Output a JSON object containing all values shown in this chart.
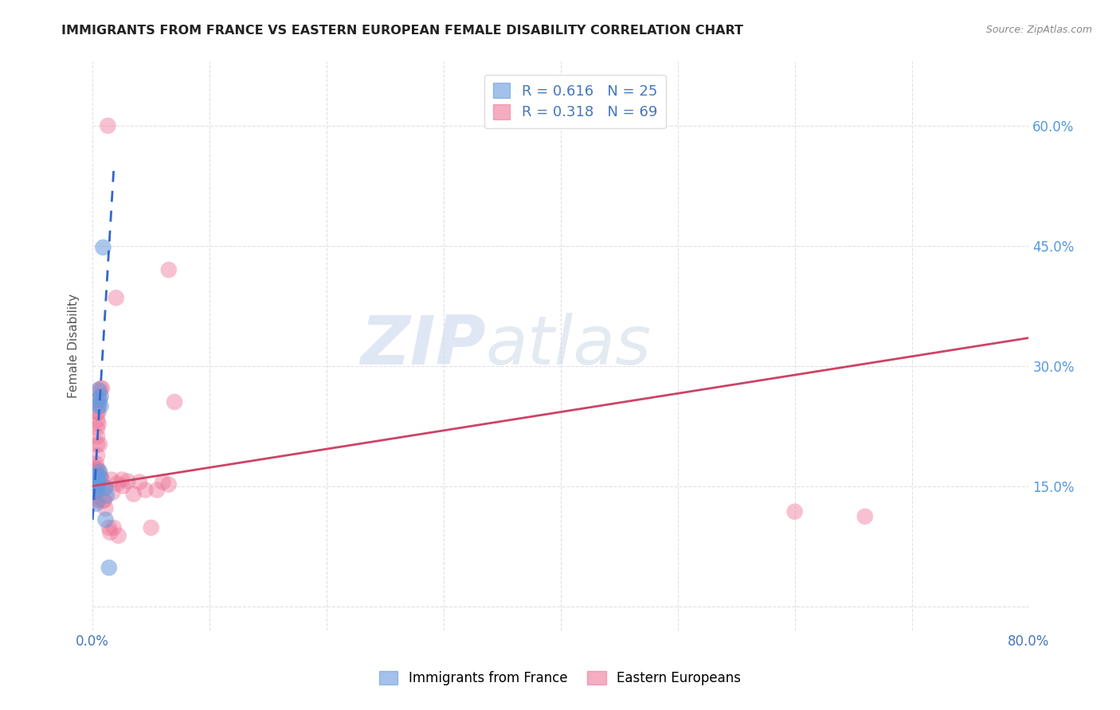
{
  "title": "IMMIGRANTS FROM FRANCE VS EASTERN EUROPEAN FEMALE DISABILITY CORRELATION CHART",
  "source": "Source: ZipAtlas.com",
  "ylabel": "Female Disability",
  "ytick_values": [
    0.0,
    0.15,
    0.3,
    0.45,
    0.6
  ],
  "xlim": [
    0.0,
    0.8
  ],
  "ylim": [
    -0.03,
    0.68
  ],
  "watermark_zip": "ZIP",
  "watermark_atlas": "atlas",
  "france_color": "#6699dd",
  "eastern_color": "#ee7799",
  "france_trendline_color": "#3366cc",
  "eastern_trendline_color": "#cc4466",
  "france_scatter": [
    [
      0.001,
      0.155
    ],
    [
      0.001,
      0.148
    ],
    [
      0.002,
      0.157
    ],
    [
      0.002,
      0.15
    ],
    [
      0.002,
      0.143
    ],
    [
      0.003,
      0.16
    ],
    [
      0.003,
      0.153
    ],
    [
      0.003,
      0.148
    ],
    [
      0.003,
      0.128
    ],
    [
      0.004,
      0.163
    ],
    [
      0.004,
      0.157
    ],
    [
      0.004,
      0.152
    ],
    [
      0.004,
      0.148
    ],
    [
      0.005,
      0.27
    ],
    [
      0.005,
      0.258
    ],
    [
      0.005,
      0.25
    ],
    [
      0.006,
      0.168
    ],
    [
      0.006,
      0.162
    ],
    [
      0.007,
      0.262
    ],
    [
      0.007,
      0.25
    ],
    [
      0.009,
      0.448
    ],
    [
      0.011,
      0.148
    ],
    [
      0.011,
      0.108
    ],
    [
      0.012,
      0.138
    ],
    [
      0.014,
      0.048
    ]
  ],
  "eastern_scatter": [
    [
      0.001,
      0.168
    ],
    [
      0.001,
      0.16
    ],
    [
      0.001,
      0.152
    ],
    [
      0.001,
      0.146
    ],
    [
      0.001,
      0.14
    ],
    [
      0.001,
      0.132
    ],
    [
      0.002,
      0.172
    ],
    [
      0.002,
      0.166
    ],
    [
      0.002,
      0.16
    ],
    [
      0.002,
      0.152
    ],
    [
      0.002,
      0.148
    ],
    [
      0.002,
      0.142
    ],
    [
      0.002,
      0.136
    ],
    [
      0.003,
      0.178
    ],
    [
      0.003,
      0.17
    ],
    [
      0.003,
      0.163
    ],
    [
      0.003,
      0.157
    ],
    [
      0.003,
      0.152
    ],
    [
      0.003,
      0.147
    ],
    [
      0.003,
      0.142
    ],
    [
      0.003,
      0.137
    ],
    [
      0.004,
      0.242
    ],
    [
      0.004,
      0.232
    ],
    [
      0.004,
      0.222
    ],
    [
      0.004,
      0.212
    ],
    [
      0.004,
      0.202
    ],
    [
      0.004,
      0.188
    ],
    [
      0.004,
      0.172
    ],
    [
      0.005,
      0.252
    ],
    [
      0.005,
      0.242
    ],
    [
      0.005,
      0.228
    ],
    [
      0.005,
      0.168
    ],
    [
      0.005,
      0.152
    ],
    [
      0.005,
      0.132
    ],
    [
      0.006,
      0.268
    ],
    [
      0.006,
      0.258
    ],
    [
      0.006,
      0.202
    ],
    [
      0.007,
      0.272
    ],
    [
      0.007,
      0.162
    ],
    [
      0.007,
      0.152
    ],
    [
      0.008,
      0.272
    ],
    [
      0.008,
      0.158
    ],
    [
      0.009,
      0.132
    ],
    [
      0.01,
      0.148
    ],
    [
      0.01,
      0.132
    ],
    [
      0.011,
      0.122
    ],
    [
      0.013,
      0.6
    ],
    [
      0.014,
      0.098
    ],
    [
      0.015,
      0.092
    ],
    [
      0.016,
      0.158
    ],
    [
      0.017,
      0.142
    ],
    [
      0.018,
      0.098
    ],
    [
      0.02,
      0.385
    ],
    [
      0.021,
      0.153
    ],
    [
      0.022,
      0.088
    ],
    [
      0.025,
      0.158
    ],
    [
      0.026,
      0.15
    ],
    [
      0.03,
      0.156
    ],
    [
      0.035,
      0.14
    ],
    [
      0.04,
      0.155
    ],
    [
      0.045,
      0.145
    ],
    [
      0.05,
      0.098
    ],
    [
      0.055,
      0.145
    ],
    [
      0.06,
      0.155
    ],
    [
      0.065,
      0.42
    ],
    [
      0.065,
      0.152
    ],
    [
      0.07,
      0.255
    ],
    [
      0.6,
      0.118
    ],
    [
      0.66,
      0.112
    ]
  ],
  "france_trend_x": [
    0.0,
    0.018
  ],
  "france_trend_y": [
    0.108,
    0.545
  ],
  "eastern_trend_x": [
    0.0,
    0.8
  ],
  "eastern_trend_y": [
    0.15,
    0.335
  ],
  "background_color": "#ffffff",
  "grid_color": "#e0e0e8",
  "right_axis_color": "#5599dd",
  "legend_r1": "0.616",
  "legend_n1": "25",
  "legend_r2": "0.318",
  "legend_n2": "69"
}
